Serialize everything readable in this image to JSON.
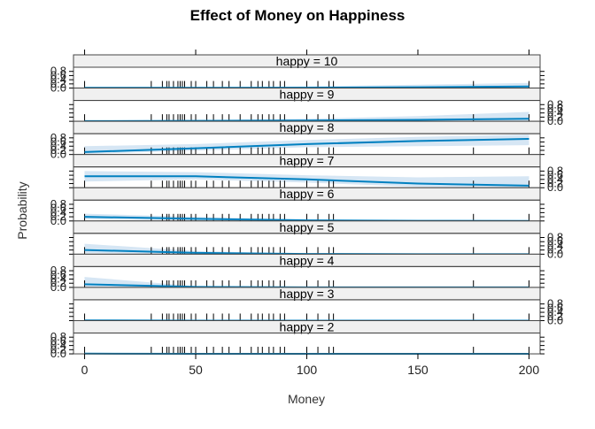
{
  "chart_data": {
    "type": "line",
    "title": "Effect of Money on Happiness",
    "xlabel": "Money",
    "ylabel": "Probability",
    "xlim": [
      -5,
      205
    ],
    "ylim": [
      0,
      1
    ],
    "x_ticks": [
      0,
      50,
      100,
      150,
      200
    ],
    "y_ticks": [
      0.0,
      0.2,
      0.4,
      0.6,
      0.8
    ],
    "y_tick_labels": [
      "0.0",
      "0.2",
      "0.4",
      "0.6",
      "0.8"
    ],
    "colors": {
      "line": "#0080c0",
      "band": "#d6e6f4",
      "strip": "#f0f0f0",
      "frame": "#444444"
    },
    "rug": [
      0,
      30,
      35,
      37,
      38,
      40,
      42,
      43,
      44,
      45,
      48,
      50,
      55,
      58,
      62,
      65,
      70,
      75,
      78,
      80,
      83,
      85,
      88,
      90,
      100,
      105,
      110,
      112,
      175,
      200
    ],
    "x": [
      0,
      50,
      100,
      150,
      200
    ],
    "panels": [
      {
        "label": "happy = 10",
        "y": [
          0.01,
          0.01,
          0.02,
          0.04,
          0.08
        ],
        "lower": [
          0.0,
          0.0,
          0.0,
          0.0,
          0.0
        ],
        "upper": [
          0.02,
          0.03,
          0.08,
          0.16,
          0.25
        ]
      },
      {
        "label": "happy = 9",
        "y": [
          0.01,
          0.02,
          0.04,
          0.07,
          0.12
        ],
        "lower": [
          0.0,
          0.0,
          0.0,
          0.0,
          0.0
        ],
        "upper": [
          0.02,
          0.05,
          0.12,
          0.25,
          0.45
        ]
      },
      {
        "label": "happy = 8",
        "y": [
          0.12,
          0.3,
          0.5,
          0.65,
          0.75
        ],
        "lower": [
          0.03,
          0.18,
          0.35,
          0.4,
          0.45
        ],
        "upper": [
          0.4,
          0.5,
          0.7,
          0.85,
          0.95
        ]
      },
      {
        "label": "happy = 7",
        "y": [
          0.55,
          0.55,
          0.4,
          0.2,
          0.1
        ],
        "lower": [
          0.3,
          0.4,
          0.25,
          0.05,
          0.0
        ],
        "upper": [
          0.8,
          0.75,
          0.6,
          0.5,
          0.55
        ]
      },
      {
        "label": "happy = 6",
        "y": [
          0.2,
          0.1,
          0.03,
          0.01,
          0.0
        ],
        "lower": [
          0.08,
          0.03,
          0.0,
          0.0,
          0.0
        ],
        "upper": [
          0.35,
          0.2,
          0.08,
          0.03,
          0.01
        ]
      },
      {
        "label": "happy = 5",
        "y": [
          0.2,
          0.06,
          0.01,
          0.0,
          0.0
        ],
        "lower": [
          0.05,
          0.01,
          0.0,
          0.0,
          0.0
        ],
        "upper": [
          0.5,
          0.15,
          0.03,
          0.01,
          0.0
        ]
      },
      {
        "label": "happy = 4",
        "y": [
          0.15,
          0.02,
          0.0,
          0.0,
          0.0
        ],
        "lower": [
          0.02,
          0.0,
          0.0,
          0.0,
          0.0
        ],
        "upper": [
          0.5,
          0.06,
          0.01,
          0.0,
          0.0
        ]
      },
      {
        "label": "happy = 3",
        "y": [
          0.01,
          0.0,
          0.0,
          0.0,
          0.0
        ],
        "lower": [
          0.0,
          0.0,
          0.0,
          0.0,
          0.0
        ],
        "upper": [
          0.05,
          0.01,
          0.0,
          0.0,
          0.0
        ]
      },
      {
        "label": "happy = 2",
        "y": [
          0.01,
          0.0,
          0.0,
          0.0,
          0.0
        ],
        "lower": [
          0.0,
          0.0,
          0.0,
          0.0,
          0.0
        ],
        "upper": [
          0.04,
          0.01,
          0.0,
          0.0,
          0.0
        ]
      }
    ]
  }
}
